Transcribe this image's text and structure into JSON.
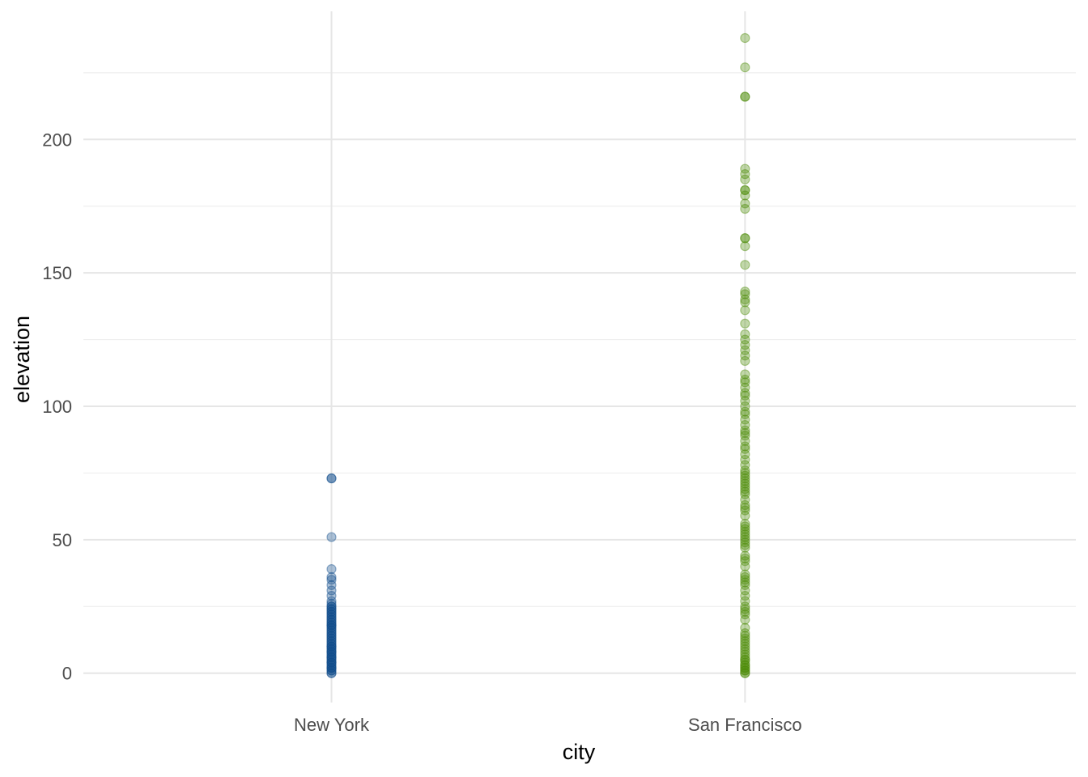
{
  "chart_data": {
    "type": "scatter",
    "title": "",
    "xlabel": "city",
    "ylabel": "elevation",
    "x_type": "categorical",
    "categories": [
      "New York",
      "San Francisco"
    ],
    "ylim": [
      -11,
      248
    ],
    "y_ticks": [
      0,
      50,
      100,
      150,
      200
    ],
    "grid": true,
    "legend": "none",
    "point_opacity": 0.35,
    "series": [
      {
        "category": "New York",
        "color": "#124e8c",
        "values": [
          0,
          0,
          1,
          1,
          2,
          2,
          2,
          3,
          3,
          4,
          4,
          4,
          5,
          5,
          6,
          6,
          6,
          7,
          7,
          8,
          8,
          8,
          9,
          9,
          10,
          10,
          10,
          11,
          11,
          12,
          12,
          13,
          13,
          14,
          14,
          15,
          15,
          16,
          16,
          17,
          17,
          18,
          18,
          18,
          19,
          19,
          20,
          20,
          21,
          21,
          22,
          22,
          23,
          23,
          24,
          24,
          25,
          25,
          26,
          27,
          29,
          31,
          33,
          35,
          36,
          39,
          51,
          73,
          73
        ]
      },
      {
        "category": "San Francisco",
        "color": "#4e8d09",
        "values": [
          0,
          0,
          1,
          1,
          2,
          2,
          3,
          3,
          4,
          5,
          5,
          6,
          7,
          8,
          9,
          10,
          11,
          12,
          13,
          14,
          15,
          17,
          20,
          22,
          23,
          24,
          25,
          27,
          29,
          31,
          33,
          34,
          35,
          36,
          37,
          40,
          42,
          43,
          44,
          47,
          48,
          49,
          50,
          51,
          52,
          53,
          54,
          55,
          56,
          59,
          61,
          62,
          63,
          65,
          67,
          68,
          69,
          70,
          71,
          72,
          73,
          74,
          75,
          76,
          78,
          80,
          82,
          84,
          85,
          87,
          89,
          90,
          91,
          93,
          95,
          97,
          98,
          100,
          102,
          104,
          105,
          107,
          109,
          110,
          112,
          117,
          119,
          121,
          123,
          125,
          127,
          131,
          136,
          139,
          140,
          142,
          143,
          153,
          160,
          163,
          163,
          174,
          176,
          179,
          181,
          181,
          185,
          187,
          189,
          216,
          216,
          227,
          238
        ]
      }
    ]
  }
}
